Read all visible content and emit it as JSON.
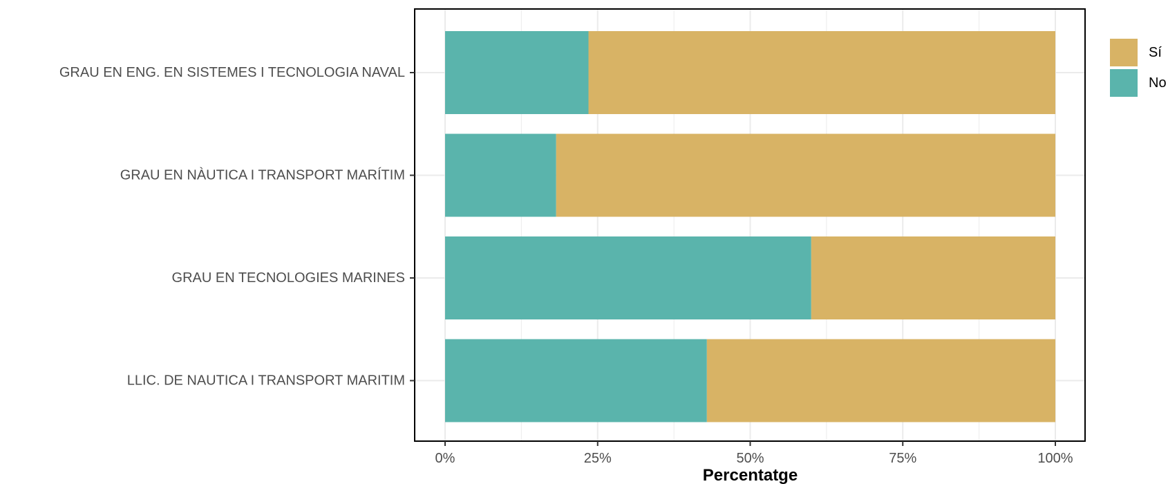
{
  "chart_data": {
    "type": "bar",
    "orientation": "horizontal",
    "stacked": true,
    "categories": [
      "GRAU EN ENG. EN SISTEMES I TECNOLOGIA NAVAL",
      "GRAU EN NÀUTICA I TRANSPORT MARÍTIM",
      "GRAU EN TECNOLOGIES MARINES",
      "LLIC. DE NAUTICA I TRANSPORT MARITIM"
    ],
    "series": [
      {
        "name": "No",
        "color": "#5ab4ac",
        "values": [
          23.5,
          18.2,
          60.0,
          42.9
        ]
      },
      {
        "name": "Sí",
        "color": "#d8b365",
        "values": [
          76.5,
          81.8,
          40.0,
          57.1
        ]
      }
    ],
    "legend_order": [
      "Sí",
      "No"
    ],
    "xlim": [
      0,
      100
    ],
    "xticks": [
      0,
      25,
      50,
      75,
      100
    ],
    "xtick_labels": [
      "0%",
      "25%",
      "50%",
      "75%",
      "100%"
    ],
    "xlabel": "Percentatge",
    "ylabel": "",
    "title": "",
    "grid": true,
    "legend_position": "right"
  }
}
